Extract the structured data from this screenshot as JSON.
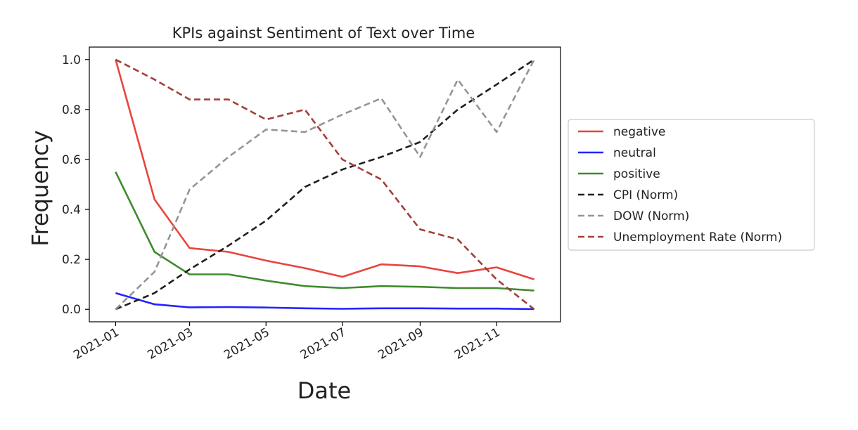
{
  "chart_data": {
    "type": "line",
    "title": "KPIs against Sentiment of Text over Time",
    "xlabel": "Date",
    "ylabel": "Frequency",
    "x": [
      "2021-01",
      "2021-02",
      "2021-03",
      "2021-04",
      "2021-05",
      "2021-06",
      "2021-07",
      "2021-08",
      "2021-09",
      "2021-10",
      "2021-11",
      "2021-12"
    ],
    "xlim": [
      "2020-12-11",
      "2021-12-22"
    ],
    "ylim": [
      -0.05,
      1.05
    ],
    "x_ticks": [
      "2021-01",
      "2021-03",
      "2021-05",
      "2021-07",
      "2021-09",
      "2021-11"
    ],
    "y_ticks": [
      "0.0",
      "0.2",
      "0.4",
      "0.6",
      "0.8",
      "1.0"
    ],
    "grid": false,
    "legend_position": "outside-right",
    "series": [
      {
        "name": "negative",
        "color": "#e8453c",
        "dash": "solid",
        "values": [
          1.0,
          0.44,
          0.245,
          0.23,
          0.195,
          0.165,
          0.13,
          0.18,
          0.172,
          0.145,
          0.168,
          0.12
        ]
      },
      {
        "name": "neutral",
        "color": "#2323ff",
        "dash": "solid",
        "values": [
          0.065,
          0.02,
          0.008,
          0.009,
          0.007,
          0.004,
          0.002,
          0.004,
          0.004,
          0.003,
          0.003,
          0.001
        ]
      },
      {
        "name": "positive",
        "color": "#3e8b2e",
        "dash": "solid",
        "values": [
          0.55,
          0.23,
          0.14,
          0.14,
          0.115,
          0.093,
          0.085,
          0.093,
          0.09,
          0.085,
          0.085,
          0.075
        ]
      },
      {
        "name": "CPI (Norm)",
        "color": "#1f1f1f",
        "dash": "dashed",
        "values": [
          0.0,
          0.065,
          0.16,
          0.255,
          0.355,
          0.49,
          0.56,
          0.61,
          0.67,
          0.8,
          0.9,
          1.0
        ]
      },
      {
        "name": "DOW (Norm)",
        "color": "#959595",
        "dash": "dashed",
        "values": [
          0.0,
          0.15,
          0.48,
          0.61,
          0.72,
          0.71,
          0.78,
          0.845,
          0.61,
          0.92,
          0.71,
          1.0
        ]
      },
      {
        "name": "Unemployment Rate (Norm)",
        "color": "#a0403a",
        "dash": "dashed",
        "values": [
          1.0,
          0.92,
          0.84,
          0.84,
          0.76,
          0.8,
          0.6,
          0.52,
          0.32,
          0.28,
          0.12,
          0.0
        ]
      }
    ]
  }
}
